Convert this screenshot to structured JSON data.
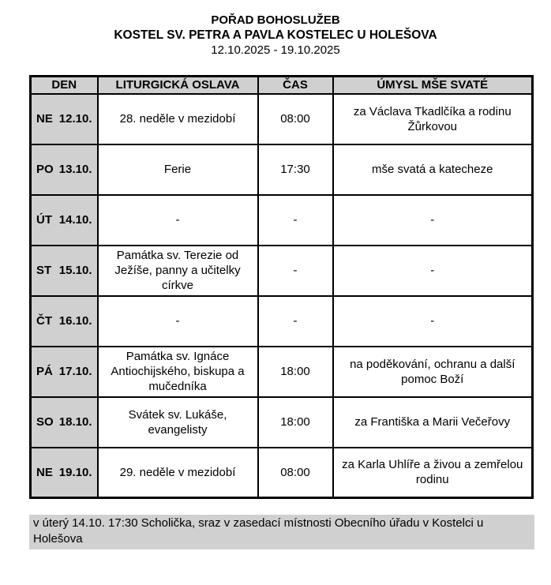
{
  "header": {
    "title": "POŘAD BOHOSLUŽEB",
    "subtitle": "KOSTEL SV. PETRA A PAVLA KOSTELEC U HOLEŠOVA",
    "date_range": "12.10.2025 - 19.10.2025"
  },
  "table": {
    "columns": [
      "DEN",
      "LITURGICKÁ OSLAVA",
      "ČAS",
      "ÚMYSL MŠE SVATÉ"
    ],
    "rows": [
      {
        "day": "NE",
        "date": "12.10.",
        "celebration": "28. neděle v mezidobí",
        "time": "08:00",
        "intention": "za Václava Tkadlčíka a rodinu Žůrkovou"
      },
      {
        "day": "PO",
        "date": "13.10.",
        "celebration": "Ferie",
        "time": "17:30",
        "intention": "mše svatá a katecheze"
      },
      {
        "day": "ÚT",
        "date": "14.10.",
        "celebration": "-",
        "time": "-",
        "intention": "-"
      },
      {
        "day": "ST",
        "date": "15.10.",
        "celebration": "Památka sv. Terezie od Ježíše, panny a učitelky církve",
        "time": "-",
        "intention": "-"
      },
      {
        "day": "ČT",
        "date": "16.10.",
        "celebration": "-",
        "time": "-",
        "intention": "-"
      },
      {
        "day": "PÁ",
        "date": "17.10.",
        "celebration": "Památka sv. Ignáce Antiochijského, biskupa a mučedníka",
        "time": "18:00",
        "intention": "na poděkování, ochranu a další pomoc Boží"
      },
      {
        "day": "SO",
        "date": "18.10.",
        "celebration": "Svátek sv. Lukáše, evangelisty",
        "time": "18:00",
        "intention": "za Františka a Marii Večeřovy"
      },
      {
        "day": "NE",
        "date": "19.10.",
        "celebration": "29. neděle v mezidobí",
        "time": "08:00",
        "intention": "za Karla Uhlíře a živou a zemřelou rodinu"
      }
    ]
  },
  "footer": {
    "note": "v úterý 14.10. 17:30 Scholička, sraz v zasedací místnosti Obecního úřadu v Kostelci u Holešova"
  },
  "colors": {
    "header_bg": "#d0d0d0",
    "border": "#000000"
  }
}
